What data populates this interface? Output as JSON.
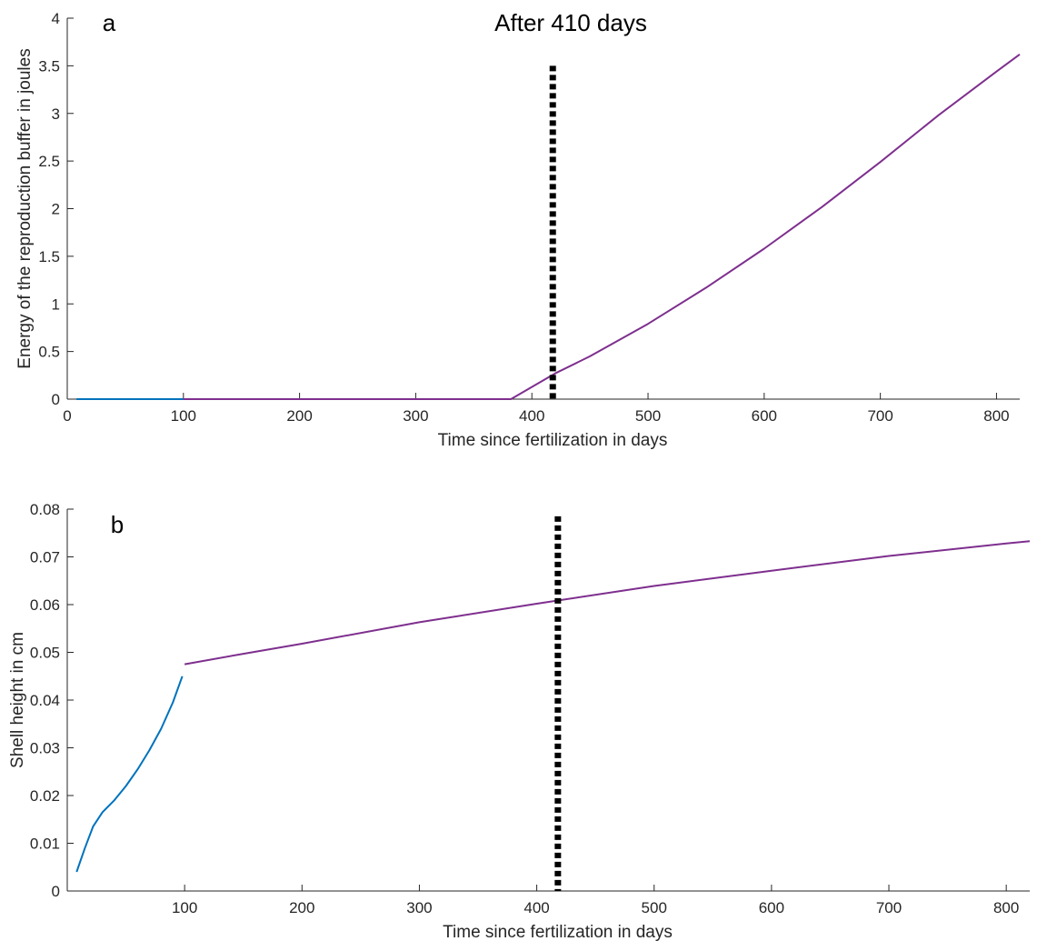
{
  "chart_data": [
    {
      "type": "line",
      "panel_label": "a",
      "title": "After 410 days",
      "xlabel": "Time since fertilization in days",
      "ylabel": "Energy of the reproduction buffer in joules",
      "xlim": [
        0,
        820
      ],
      "ylim": [
        0,
        4
      ],
      "xticks": [
        0,
        100,
        200,
        300,
        400,
        500,
        600,
        700,
        800
      ],
      "xtick_labels": [
        "0",
        "100",
        "200",
        "300",
        "400",
        "500",
        "600",
        "700",
        "800"
      ],
      "yticks": [
        0,
        0.5,
        1,
        1.5,
        2,
        2.5,
        3,
        3.5,
        4
      ],
      "ytick_labels": [
        "0",
        "0.5",
        "1",
        "1.5",
        "2",
        "2.5",
        "3",
        "3.5",
        "4"
      ],
      "grid": false,
      "series": [
        {
          "color": "#0072BD",
          "x": [
            8,
            100
          ],
          "y": [
            0,
            0
          ]
        },
        {
          "color": "#7E2F8E",
          "x": [
            100,
            382,
            420,
            450,
            500,
            550,
            600,
            650,
            700,
            750,
            800,
            820
          ],
          "y": [
            0,
            0,
            0.27,
            0.45,
            0.79,
            1.17,
            1.58,
            2.02,
            2.49,
            2.98,
            3.44,
            3.62
          ]
        }
      ],
      "vlines": [
        {
          "x": 418,
          "color": "#000000",
          "style": "dotted",
          "y_top": 3.5
        }
      ]
    },
    {
      "type": "line",
      "panel_label": "b",
      "title": "",
      "xlabel": "Time since fertilization in days",
      "ylabel": "Shell height in cm",
      "xlim": [
        0,
        820
      ],
      "ylim": [
        0,
        0.08
      ],
      "xticks": [
        100,
        200,
        300,
        400,
        500,
        600,
        700,
        800
      ],
      "xtick_labels": [
        "100",
        "200",
        "300",
        "400",
        "500",
        "600",
        "700",
        "800"
      ],
      "yticks": [
        0,
        0.01,
        0.02,
        0.03,
        0.04,
        0.05,
        0.06,
        0.07,
        0.08
      ],
      "ytick_labels": [
        "0",
        "0.01",
        "0.02",
        "0.03",
        "0.04",
        "0.05",
        "0.06",
        "0.07",
        "0.08"
      ],
      "grid": false,
      "series": [
        {
          "color": "#0072BD",
          "x": [
            8,
            15,
            22,
            30,
            40,
            50,
            60,
            70,
            80,
            90,
            98
          ],
          "y": [
            0.004,
            0.009,
            0.0135,
            0.0165,
            0.019,
            0.022,
            0.0255,
            0.0295,
            0.034,
            0.0395,
            0.045
          ]
        },
        {
          "color": "#7E2F8E",
          "x": [
            100,
            150,
            200,
            300,
            400,
            500,
            600,
            700,
            800,
            820
          ],
          "y": [
            0.0475,
            0.0497,
            0.0518,
            0.0563,
            0.0602,
            0.0639,
            0.0671,
            0.0702,
            0.0728,
            0.0733
          ]
        }
      ],
      "vlines": [
        {
          "x": 418,
          "color": "#000000",
          "style": "dotted",
          "y_top": 0.0785
        }
      ]
    }
  ]
}
